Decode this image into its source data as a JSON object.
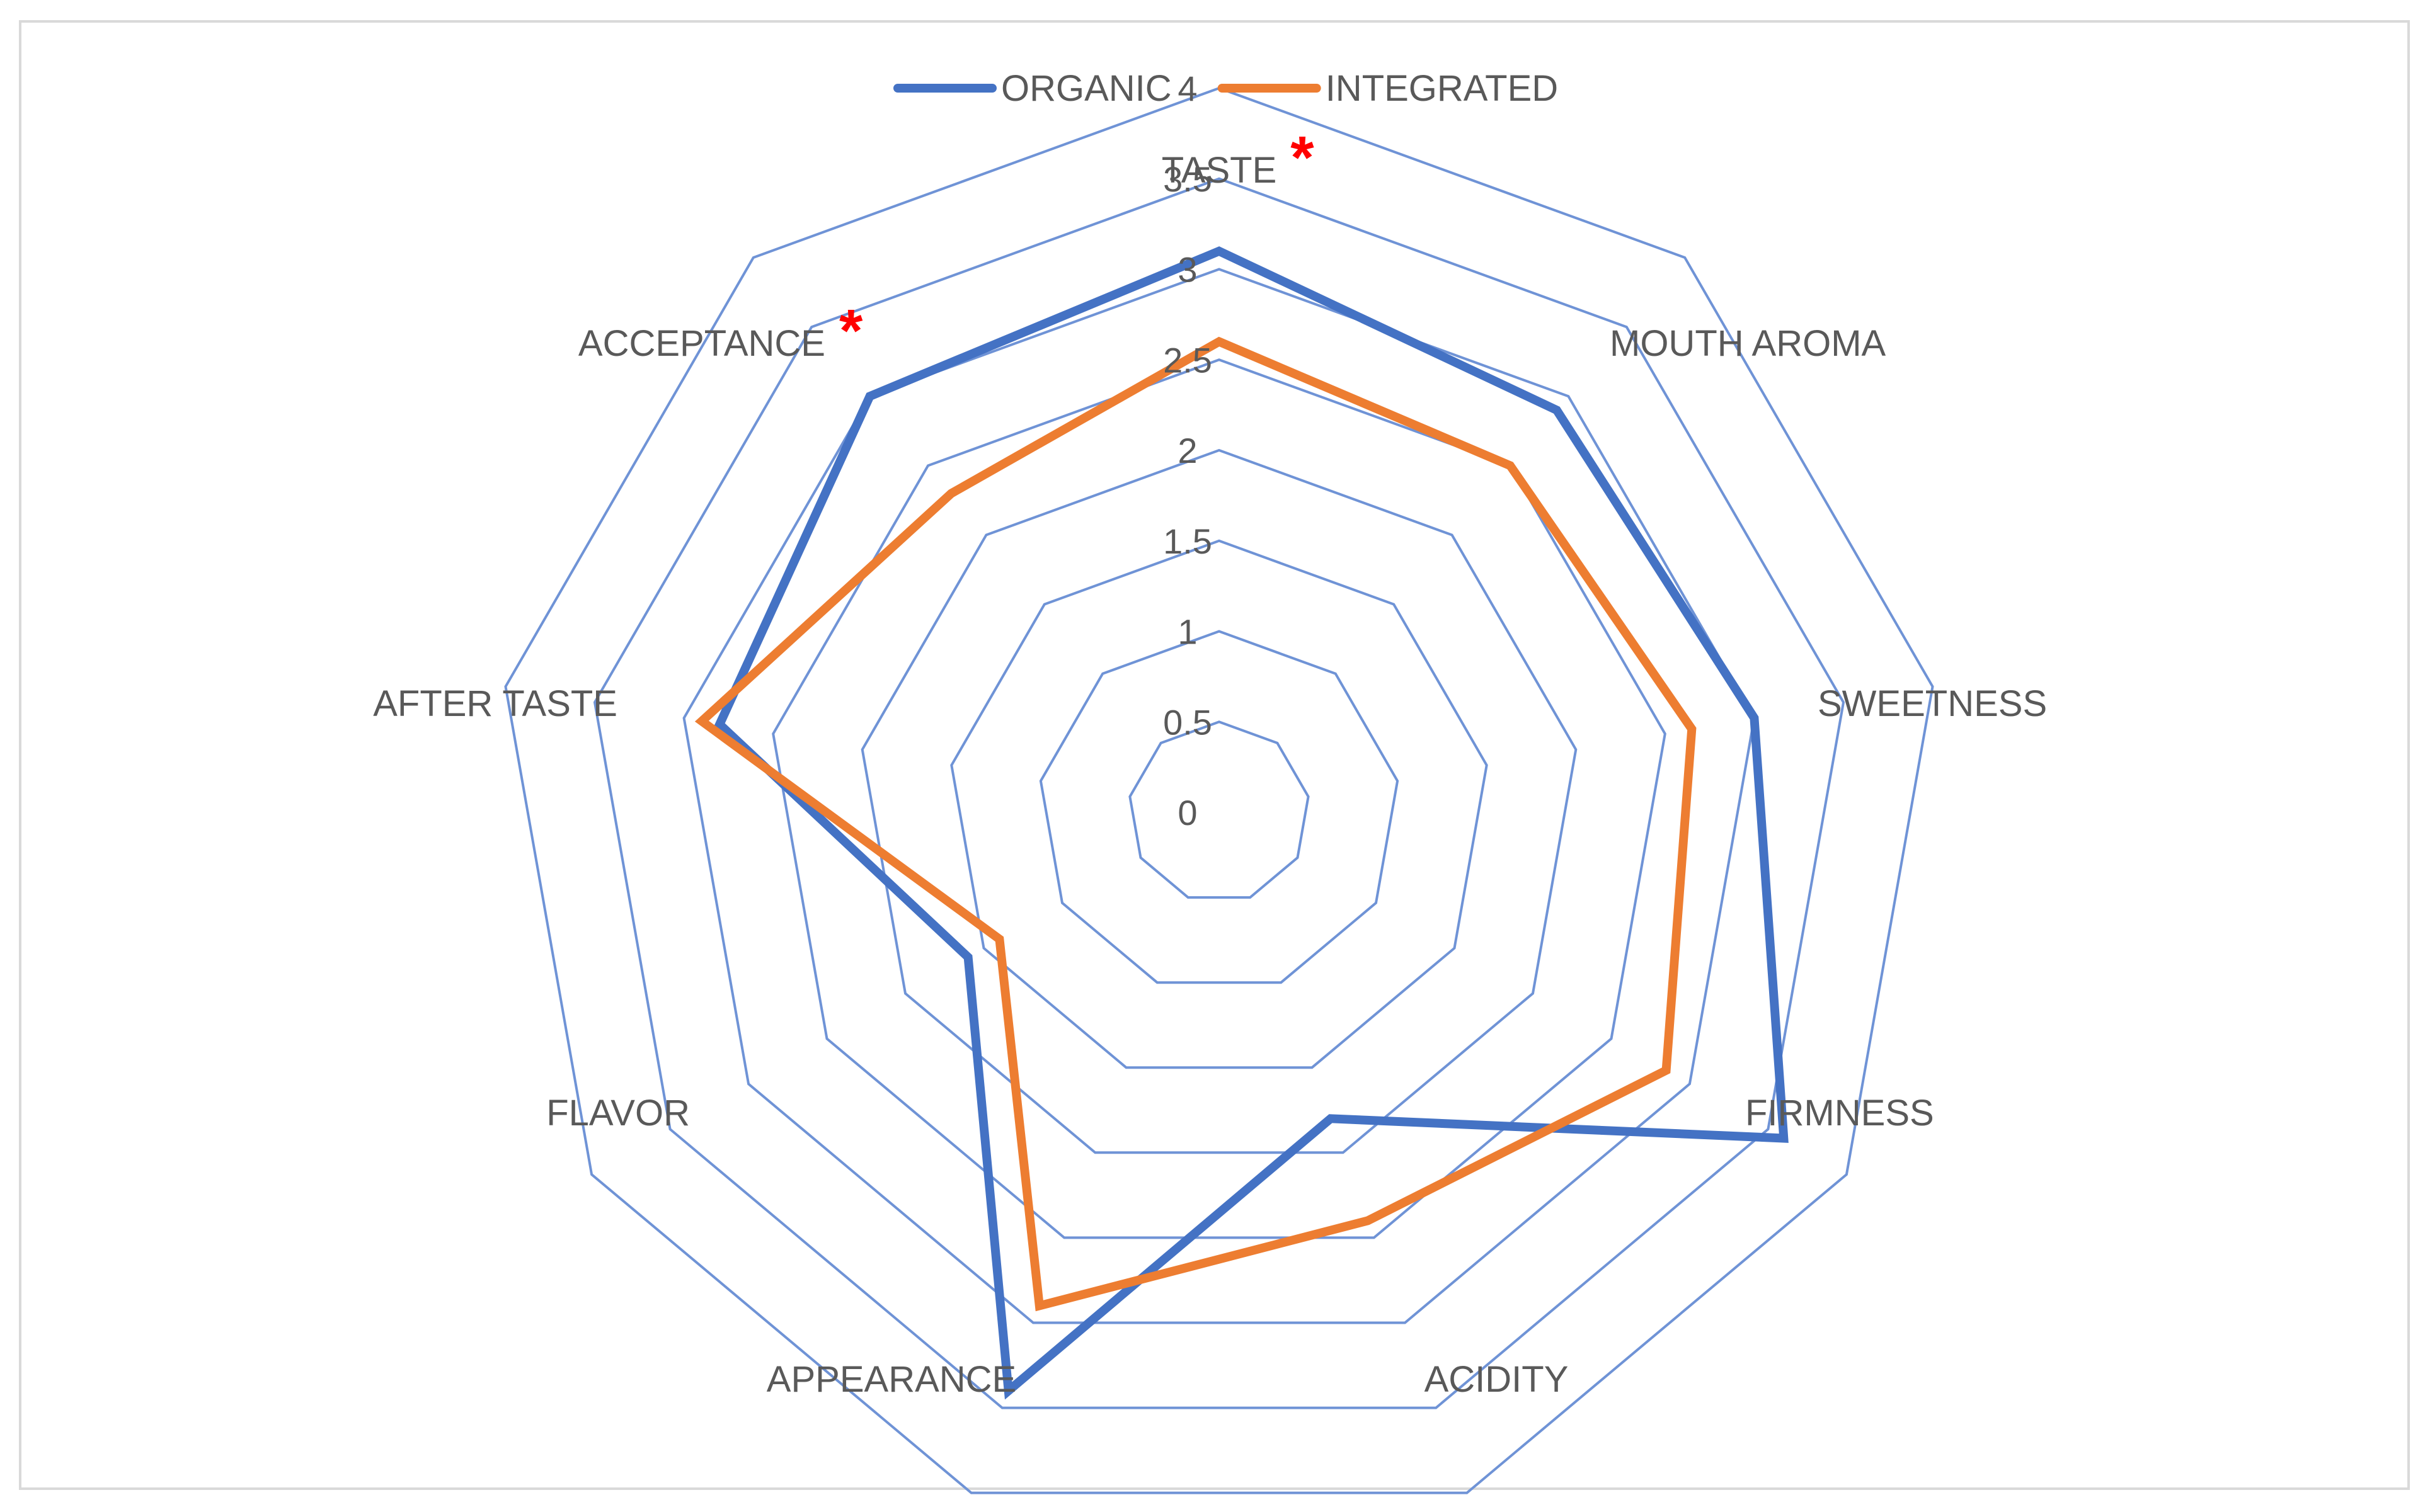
{
  "chart_data": {
    "type": "radar",
    "categories": [
      "TASTE",
      "MOUTH AROMA",
      "SWEETNESS",
      "FIRMNESS",
      "ACIDITY",
      "APPEARANCE",
      "FLAVOR",
      "AFTER TASTE",
      "ACCEPTANCE"
    ],
    "series": [
      {
        "name": "ORGANIC",
        "color": "#4472c4",
        "values": [
          3.1,
          2.9,
          3.0,
          3.6,
          1.8,
          3.4,
          1.6,
          2.8,
          3.0
        ]
      },
      {
        "name": "INTEGRATED",
        "color": "#ed7d31",
        "values": [
          2.6,
          2.5,
          2.65,
          2.85,
          2.4,
          2.9,
          1.4,
          2.9,
          2.3
        ]
      }
    ],
    "scale": {
      "min": 0,
      "max": 4,
      "step": 0.5,
      "tick_labels": [
        "0",
        "0.5",
        "1",
        "1.5",
        "2",
        "2.5",
        "3",
        "3.5",
        "4"
      ]
    },
    "grid_color": "#6f93d6",
    "legend": {
      "position": "top",
      "items": [
        "ORGANIC",
        "INTEGRATED"
      ]
    },
    "significance_marks": {
      "symbol": "*",
      "color": "#ff0000",
      "categories": [
        "TASTE",
        "ACCEPTANCE"
      ]
    }
  }
}
